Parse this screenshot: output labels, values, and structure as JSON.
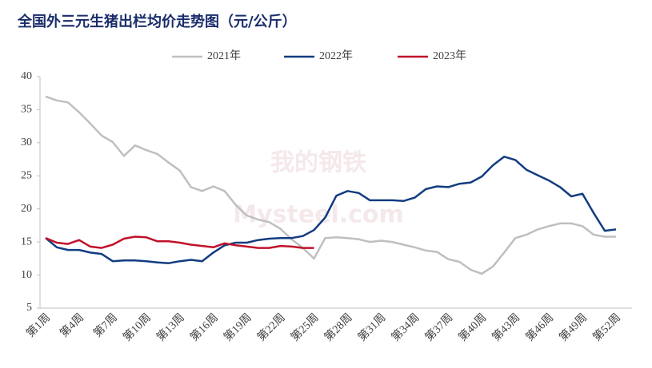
{
  "chart_data": {
    "type": "line",
    "title": "全国外三元生猪出栏均价走势图（元/公斤）",
    "watermark": [
      "我的钢铁",
      "Mysteel.com"
    ],
    "categories": [
      "第1周",
      null,
      null,
      "第4周",
      null,
      null,
      "第7周",
      null,
      null,
      "第10周",
      null,
      null,
      "第13周",
      null,
      null,
      "第16周",
      null,
      null,
      "第19周",
      null,
      null,
      "第22周",
      null,
      null,
      "第25周",
      null,
      null,
      "第28周",
      null,
      null,
      "第31周",
      null,
      null,
      "第34周",
      null,
      null,
      "第37周",
      null,
      null,
      "第40周",
      null,
      null,
      "第43周",
      null,
      null,
      "第46周",
      null,
      null,
      "第49周",
      null,
      null,
      "第52周"
    ],
    "series": [
      {
        "name": "2021年",
        "color": "#bfbfbf",
        "values": [
          37,
          36.4,
          36.1,
          34.6,
          32.9,
          31.1,
          30.1,
          28,
          29.6,
          28.9,
          28.3,
          27,
          25.8,
          23.3,
          22.7,
          23.4,
          22.7,
          20.6,
          19,
          18.4,
          18,
          17,
          15.4,
          14.1,
          12.5,
          15.6,
          15.7,
          15.6,
          15.4,
          15,
          15.2,
          15,
          14.6,
          14.2,
          13.7,
          13.5,
          12.4,
          12,
          10.8,
          10.2,
          11.3,
          13.4,
          15.6,
          16.1,
          16.9,
          17.4,
          17.8,
          17.8,
          17.4,
          16.1,
          15.8,
          15.8
        ]
      },
      {
        "name": "2022年",
        "color": "#123c80",
        "values": [
          15.6,
          14.2,
          13.8,
          13.8,
          13.4,
          13.2,
          12.1,
          12.2,
          12.2,
          12.1,
          11.9,
          11.8,
          12.1,
          12.3,
          12.1,
          13.4,
          14.5,
          14.9,
          14.9,
          15.3,
          15.5,
          15.6,
          15.6,
          15.9,
          16.8,
          18.7,
          22,
          22.7,
          22.4,
          21.3,
          21.3,
          21.3,
          21.2,
          21.7,
          23,
          23.4,
          23.3,
          23.8,
          24,
          24.9,
          26.6,
          27.9,
          27.4,
          25.9,
          25.1,
          24.3,
          23.3,
          21.9,
          22.3,
          19.4,
          16.7,
          16.9
        ]
      },
      {
        "name": "2023年",
        "color": "#c0122a",
        "values": [
          15.6,
          14.9,
          14.7,
          15.3,
          14.3,
          14.1,
          14.6,
          15.5,
          15.8,
          15.7,
          15.1,
          15.1,
          14.9,
          14.6,
          14.4,
          14.2,
          14.8,
          14.5,
          14.3,
          14.1,
          14.1,
          14.4,
          14.3,
          14.1,
          14.1,
          null,
          null,
          null,
          null,
          null,
          null,
          null,
          null,
          null,
          null,
          null,
          null,
          null,
          null,
          null,
          null,
          null,
          null,
          null,
          null,
          null,
          null,
          null,
          null,
          null,
          null,
          null
        ]
      }
    ],
    "ylim": [
      5,
      40
    ],
    "yticks": [
      5,
      10,
      15,
      20,
      25,
      30,
      35,
      40
    ],
    "grid": false,
    "legend": "top"
  }
}
